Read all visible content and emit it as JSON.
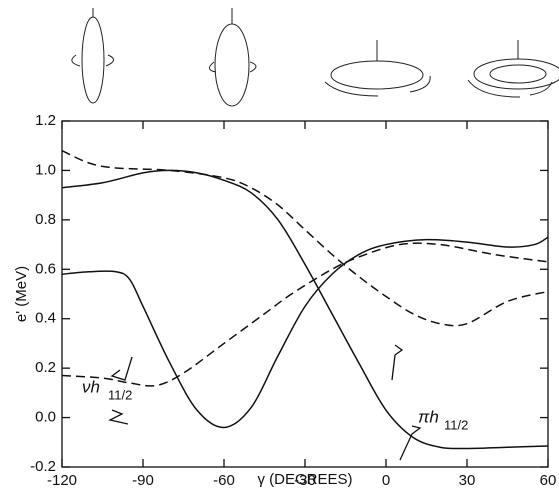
{
  "chart_data": {
    "type": "line",
    "xlabel": "γ (DEGREES)",
    "ylabel": "e' (MeV)",
    "xlim": [
      -120,
      60
    ],
    "xticks": [
      -120,
      -90,
      -60,
      -30,
      0,
      30,
      60
    ],
    "ylim": [
      -0.2,
      1.2
    ],
    "yticks": [
      -0.2,
      {
        "value": 0,
        "label": "0.0"
      },
      0.2,
      0.4,
      0.6,
      0.8,
      {
        "value": 1,
        "label": "1.0"
      },
      1.2
    ],
    "series": [
      {
        "color": "#111111",
        "dashed": false,
        "x": [
          -120,
          -105,
          -90,
          -80,
          -70,
          -60,
          -50,
          -40,
          -30,
          -20,
          -10,
          0,
          10,
          20,
          30,
          45,
          60
        ],
        "values": [
          0.93,
          0.95,
          0.99,
          1.0,
          0.99,
          0.96,
          0.91,
          0.8,
          0.62,
          0.42,
          0.22,
          0.03,
          -0.08,
          -0.12,
          -0.125,
          -0.12,
          -0.115
        ]
      },
      {
        "color": "#111111",
        "dashed": false,
        "x": [
          -120,
          -110,
          -100,
          -95,
          -90,
          -80,
          -70,
          -60,
          -50,
          -40,
          -30,
          -20,
          -10,
          0,
          15,
          30,
          45,
          55,
          60
        ],
        "values": [
          0.58,
          0.59,
          0.59,
          0.56,
          0.45,
          0.22,
          0.03,
          -0.04,
          0.04,
          0.25,
          0.45,
          0.58,
          0.66,
          0.7,
          0.72,
          0.71,
          0.69,
          0.7,
          0.73
        ]
      },
      {
        "color": "#111111",
        "dashed": true,
        "x": [
          -120,
          -110,
          -100,
          -80,
          -60,
          -50,
          -40,
          -30,
          -20,
          -10,
          0,
          10,
          20,
          30,
          45,
          60
        ],
        "values": [
          1.08,
          1.03,
          1.01,
          1.0,
          0.97,
          0.93,
          0.86,
          0.76,
          0.66,
          0.57,
          0.49,
          0.42,
          0.38,
          0.38,
          0.47,
          0.51
        ]
      },
      {
        "color": "#111111",
        "dashed": true,
        "x": [
          -120,
          -105,
          -95,
          -85,
          -75,
          -60,
          -45,
          -35,
          -20,
          -10,
          5,
          20,
          40,
          60
        ],
        "values": [
          0.17,
          0.16,
          0.14,
          0.13,
          0.18,
          0.3,
          0.42,
          0.5,
          0.6,
          0.65,
          0.7,
          0.7,
          0.66,
          0.63
        ]
      }
    ],
    "annotations": [
      {
        "text": "νh",
        "sub": "11/2"
      },
      {
        "text": "πh",
        "sub": "11/2"
      }
    ]
  }
}
